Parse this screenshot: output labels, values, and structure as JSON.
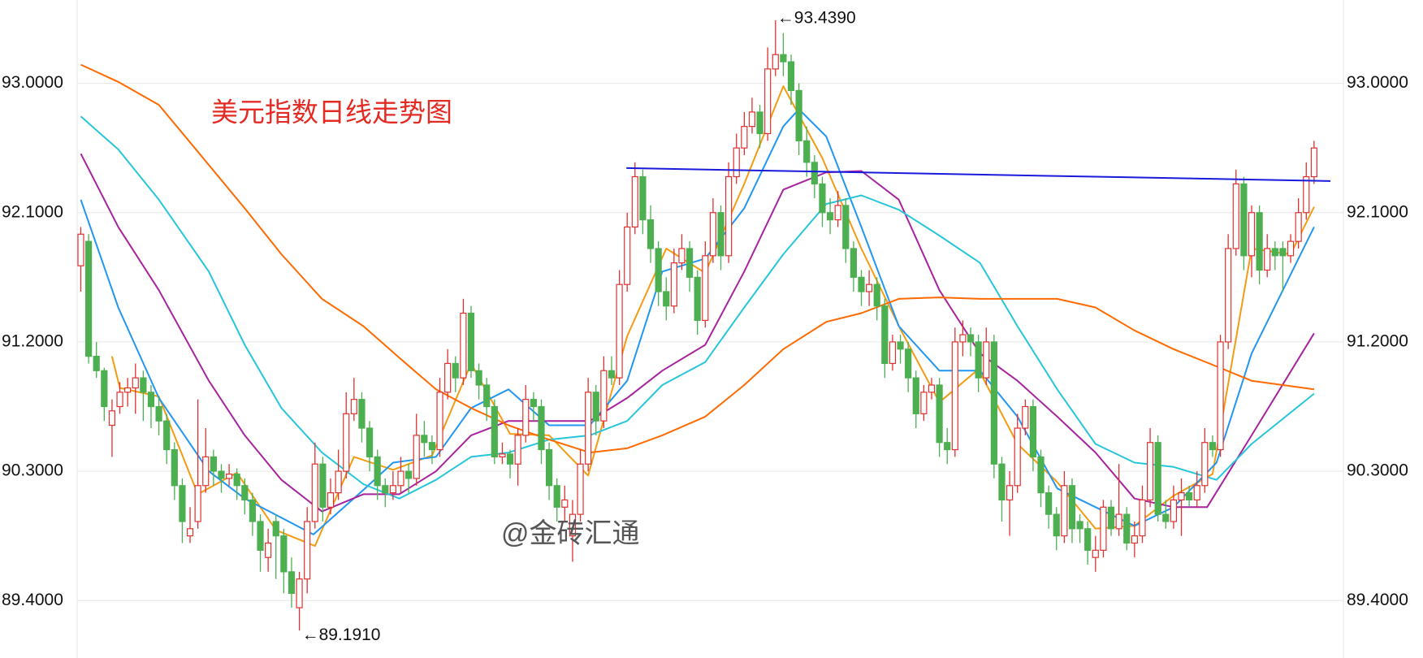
{
  "chart_data": {
    "type": "candlestick",
    "title": "美元指数日线走势图",
    "watermark": "@金砖汇通",
    "high_label": "←93.4390",
    "low_label": "←89.1910",
    "up_color": "#e0312f",
    "down_color": "#4caf50",
    "grid": true,
    "ylim": [
      89.0,
      93.58
    ],
    "yticks": [
      {
        "value": 89.4,
        "label": "89.4000"
      },
      {
        "value": 90.3,
        "label": "90.3000"
      },
      {
        "value": 91.2,
        "label": "91.2000"
      },
      {
        "value": 92.1,
        "label": "92.1000"
      },
      {
        "value": 93.0,
        "label": "93.0000"
      }
    ],
    "candles": [
      [
        91.73,
        92.0,
        91.55,
        91.95
      ],
      [
        91.9,
        91.95,
        91.05,
        91.1
      ],
      [
        91.1,
        91.2,
        90.95,
        91.0
      ],
      [
        91.0,
        91.02,
        90.65,
        90.75
      ],
      [
        90.62,
        90.8,
        90.4,
        90.72
      ],
      [
        90.75,
        90.92,
        90.7,
        90.85
      ],
      [
        90.85,
        90.95,
        90.75,
        90.88
      ],
      [
        90.88,
        91.05,
        90.7,
        90.95
      ],
      [
        90.95,
        91.0,
        90.65,
        90.85
      ],
      [
        90.85,
        90.9,
        90.6,
        90.75
      ],
      [
        90.75,
        90.82,
        90.55,
        90.65
      ],
      [
        90.65,
        90.7,
        90.35,
        90.45
      ],
      [
        90.45,
        90.5,
        90.1,
        90.2
      ],
      [
        90.2,
        90.25,
        89.8,
        89.95
      ],
      [
        89.85,
        90.05,
        89.8,
        89.9
      ],
      [
        89.95,
        90.8,
        89.9,
        90.2
      ],
      [
        90.2,
        90.6,
        90.15,
        90.4
      ],
      [
        90.4,
        90.45,
        90.2,
        90.3
      ],
      [
        90.3,
        90.35,
        90.15,
        90.25
      ],
      [
        90.25,
        90.35,
        90.2,
        90.28
      ],
      [
        90.28,
        90.32,
        90.1,
        90.2
      ],
      [
        90.2,
        90.25,
        90.0,
        90.1
      ],
      [
        90.1,
        90.15,
        89.85,
        89.95
      ],
      [
        89.95,
        90.0,
        89.6,
        89.75
      ],
      [
        89.7,
        89.9,
        89.6,
        89.8
      ],
      [
        89.95,
        90.0,
        89.55,
        89.85
      ],
      [
        89.85,
        89.9,
        89.45,
        89.6
      ],
      [
        89.6,
        89.7,
        89.35,
        89.45
      ],
      [
        89.35,
        89.6,
        89.191,
        89.55
      ],
      [
        89.55,
        90.05,
        89.45,
        89.95
      ],
      [
        89.95,
        90.5,
        89.9,
        90.35
      ],
      [
        90.35,
        90.4,
        89.95,
        90.05
      ],
      [
        90.05,
        90.25,
        90.0,
        90.15
      ],
      [
        90.15,
        90.45,
        90.1,
        90.3
      ],
      [
        90.3,
        90.85,
        90.25,
        90.7
      ],
      [
        90.7,
        90.95,
        90.65,
        90.8
      ],
      [
        90.8,
        90.85,
        90.5,
        90.6
      ],
      [
        90.6,
        90.65,
        90.3,
        90.4
      ],
      [
        90.4,
        90.45,
        90.1,
        90.2
      ],
      [
        90.2,
        90.25,
        90.05,
        90.15
      ],
      [
        90.15,
        90.3,
        90.1,
        90.2
      ],
      [
        90.2,
        90.4,
        90.15,
        90.3
      ],
      [
        90.3,
        90.35,
        90.15,
        90.25
      ],
      [
        90.25,
        90.7,
        90.2,
        90.55
      ],
      [
        90.55,
        90.65,
        90.4,
        90.5
      ],
      [
        90.5,
        90.55,
        90.35,
        90.45
      ],
      [
        90.45,
        90.95,
        90.4,
        90.85
      ],
      [
        90.85,
        91.15,
        90.8,
        91.05
      ],
      [
        91.05,
        91.1,
        90.85,
        90.95
      ],
      [
        90.95,
        91.5,
        90.9,
        91.4
      ],
      [
        91.4,
        91.45,
        90.95,
        91.0
      ],
      [
        91.0,
        91.05,
        90.8,
        90.9
      ],
      [
        90.9,
        90.95,
        90.65,
        90.75
      ],
      [
        90.75,
        90.8,
        90.35,
        90.4
      ],
      [
        90.4,
        90.5,
        90.35,
        90.42
      ],
      [
        90.42,
        90.45,
        90.25,
        90.35
      ],
      [
        90.35,
        90.6,
        90.2,
        90.55
      ],
      [
        90.55,
        90.9,
        90.5,
        90.8
      ],
      [
        90.8,
        90.85,
        90.65,
        90.75
      ],
      [
        90.75,
        90.8,
        90.35,
        90.45
      ],
      [
        90.45,
        90.5,
        90.1,
        90.2
      ],
      [
        90.2,
        90.25,
        89.95,
        90.05
      ],
      [
        90.05,
        90.2,
        89.95,
        90.1
      ],
      [
        89.85,
        90.1,
        89.67,
        90.0
      ],
      [
        90.0,
        90.45,
        89.95,
        90.35
      ],
      [
        90.35,
        90.95,
        90.3,
        90.85
      ],
      [
        90.85,
        90.9,
        90.55,
        90.65
      ],
      [
        90.65,
        91.1,
        90.6,
        91.0
      ],
      [
        91.0,
        91.1,
        90.9,
        90.95
      ],
      [
        90.95,
        91.7,
        90.9,
        91.6
      ],
      [
        91.6,
        92.1,
        91.55,
        92.0
      ],
      [
        92.0,
        92.45,
        91.95,
        92.35
      ],
      [
        92.35,
        92.4,
        91.95,
        92.05
      ],
      [
        92.05,
        92.15,
        91.75,
        91.85
      ],
      [
        91.85,
        91.9,
        91.45,
        91.55
      ],
      [
        91.55,
        91.65,
        91.35,
        91.45
      ],
      [
        91.45,
        91.85,
        91.4,
        91.75
      ],
      [
        91.75,
        91.95,
        91.7,
        91.85
      ],
      [
        91.85,
        91.9,
        91.55,
        91.65
      ],
      [
        91.65,
        91.7,
        91.25,
        91.35
      ],
      [
        91.35,
        91.9,
        91.3,
        91.8
      ],
      [
        91.8,
        92.2,
        91.75,
        92.1
      ],
      [
        92.1,
        92.15,
        91.7,
        91.8
      ],
      [
        91.8,
        92.45,
        91.75,
        92.35
      ],
      [
        92.35,
        92.65,
        92.3,
        92.55
      ],
      [
        92.55,
        92.8,
        92.5,
        92.7
      ],
      [
        92.7,
        92.9,
        92.65,
        92.8
      ],
      [
        92.8,
        92.85,
        92.55,
        92.65
      ],
      [
        92.65,
        93.25,
        92.6,
        93.1
      ],
      [
        93.1,
        93.439,
        93.05,
        93.2
      ],
      [
        93.2,
        93.35,
        93.05,
        93.15
      ],
      [
        93.15,
        93.2,
        92.85,
        92.95
      ],
      [
        92.95,
        93.0,
        92.5,
        92.6
      ],
      [
        92.6,
        92.7,
        92.35,
        92.45
      ],
      [
        92.45,
        92.5,
        92.2,
        92.3
      ],
      [
        92.3,
        92.35,
        92.0,
        92.1
      ],
      [
        92.1,
        92.2,
        91.95,
        92.05
      ],
      [
        92.05,
        92.25,
        92.0,
        92.15
      ],
      [
        92.15,
        92.2,
        91.75,
        91.85
      ],
      [
        91.85,
        91.9,
        91.55,
        91.65
      ],
      [
        91.65,
        91.7,
        91.45,
        91.55
      ],
      [
        91.55,
        91.7,
        91.45,
        91.6
      ],
      [
        91.6,
        91.65,
        91.35,
        91.45
      ],
      [
        91.45,
        91.5,
        90.95,
        91.05
      ],
      [
        91.05,
        91.25,
        91.0,
        91.2
      ],
      [
        91.2,
        91.25,
        91.05,
        91.15
      ],
      [
        91.15,
        91.2,
        90.85,
        90.95
      ],
      [
        90.95,
        91.0,
        90.6,
        90.7
      ],
      [
        90.7,
        90.9,
        90.65,
        90.85
      ],
      [
        90.85,
        90.95,
        90.8,
        90.9
      ],
      [
        90.9,
        90.95,
        90.4,
        90.5
      ],
      [
        90.5,
        90.6,
        90.35,
        90.45
      ],
      [
        90.45,
        91.3,
        90.4,
        91.2
      ],
      [
        91.2,
        91.35,
        91.1,
        91.25
      ],
      [
        91.25,
        91.3,
        91.1,
        91.2
      ],
      [
        91.2,
        91.25,
        90.85,
        90.95
      ],
      [
        90.95,
        91.3,
        90.9,
        91.2
      ],
      [
        91.2,
        91.25,
        90.25,
        90.35
      ],
      [
        90.35,
        90.4,
        89.95,
        90.1
      ],
      [
        90.1,
        90.3,
        89.85,
        90.2
      ],
      [
        90.2,
        90.7,
        90.15,
        90.6
      ],
      [
        90.6,
        90.8,
        90.55,
        90.75
      ],
      [
        90.75,
        90.8,
        90.3,
        90.4
      ],
      [
        90.4,
        90.45,
        90.05,
        90.15
      ],
      [
        90.15,
        90.2,
        89.9,
        90.0
      ],
      [
        90.0,
        90.05,
        89.75,
        89.85
      ],
      [
        89.85,
        90.3,
        89.8,
        90.2
      ],
      [
        90.2,
        90.25,
        89.8,
        89.9
      ],
      [
        89.95,
        90.0,
        89.8,
        89.9
      ],
      [
        89.9,
        89.95,
        89.65,
        89.75
      ],
      [
        89.7,
        89.85,
        89.6,
        89.75
      ],
      [
        89.75,
        90.1,
        89.7,
        90.05
      ],
      [
        90.05,
        90.1,
        89.85,
        89.9
      ],
      [
        89.9,
        90.35,
        89.85,
        90.0
      ],
      [
        90.0,
        90.05,
        89.75,
        89.8
      ],
      [
        89.8,
        89.95,
        89.7,
        89.85
      ],
      [
        89.85,
        90.2,
        89.8,
        90.1
      ],
      [
        90.1,
        90.6,
        90.05,
        90.5
      ],
      [
        90.5,
        90.55,
        89.95,
        90.0
      ],
      [
        90.0,
        90.1,
        89.9,
        89.95
      ],
      [
        89.95,
        90.2,
        89.9,
        90.1
      ],
      [
        90.1,
        90.25,
        89.85,
        90.15
      ],
      [
        90.15,
        90.2,
        90.05,
        90.1
      ],
      [
        90.1,
        90.3,
        90.05,
        90.2
      ],
      [
        90.2,
        90.6,
        90.15,
        90.5
      ],
      [
        90.5,
        90.55,
        90.4,
        90.45
      ],
      [
        90.45,
        91.25,
        90.4,
        91.2
      ],
      [
        91.2,
        91.95,
        91.15,
        91.85
      ],
      [
        91.85,
        92.4,
        91.8,
        92.3
      ],
      [
        92.3,
        92.35,
        91.7,
        91.8
      ],
      [
        91.8,
        92.15,
        91.65,
        92.1
      ],
      [
        92.1,
        92.15,
        91.6,
        91.7
      ],
      [
        91.7,
        91.95,
        91.65,
        91.85
      ],
      [
        91.85,
        91.9,
        91.7,
        91.8
      ],
      [
        91.85,
        91.9,
        91.55,
        91.8
      ],
      [
        91.8,
        91.95,
        91.75,
        91.9
      ],
      [
        91.9,
        92.2,
        91.85,
        92.1
      ],
      [
        92.1,
        92.45,
        92.05,
        92.35
      ],
      [
        92.35,
        92.6,
        92.3,
        92.55
      ]
    ],
    "ma_lines": [
      {
        "color": "#f39c12",
        "x": [
          4,
          5,
          10,
          15,
          20,
          25,
          30,
          35,
          40,
          45,
          50,
          55,
          60,
          65,
          70,
          75,
          80,
          85,
          90,
          95,
          100,
          105,
          110,
          115,
          120,
          125,
          130,
          135,
          140,
          145,
          150,
          155,
          158
        ],
        "values": [
          91.1,
          90.88,
          90.82,
          90.14,
          90.29,
          89.89,
          89.78,
          90.4,
          90.31,
          90.41,
          91.05,
          90.56,
          90.55,
          90.27,
          91.24,
          91.85,
          91.68,
          92.3,
          92.98,
          92.48,
          91.85,
          91.29,
          90.78,
          91.01,
          90.49,
          90.23,
          89.9,
          89.92,
          90.13,
          90.28,
          91.85,
          91.81,
          92.14
        ]
      },
      {
        "color": "#2196f3",
        "x": [
          0,
          4.8,
          10,
          16.4,
          21,
          29.8,
          36.2,
          40,
          45.5,
          50,
          54.8,
          60,
          65.2,
          70,
          74.5,
          80,
          85,
          90,
          92,
          95.5,
          100,
          104.8,
          110,
          115.2,
          120,
          125.1,
          130,
          135,
          140,
          145.5,
          150,
          158
        ],
        "values": [
          92.19,
          91.44,
          90.81,
          90.3,
          90.11,
          89.86,
          90.17,
          90.36,
          90.4,
          90.74,
          90.87,
          90.62,
          90.62,
          90.93,
          91.69,
          91.78,
          92.13,
          92.7,
          92.82,
          92.63,
          92.0,
          91.31,
          91.0,
          91.0,
          90.68,
          90.18,
          90.05,
          89.92,
          90.05,
          90.36,
          91.12,
          92.0
        ]
      },
      {
        "color": "#a8239e",
        "x": [
          0,
          4.8,
          10,
          16.4,
          21,
          25.7,
          30.9,
          36.2,
          40.8,
          45.5,
          50,
          54.8,
          60,
          65.2,
          70,
          74.5,
          80,
          85,
          90,
          95.5,
          100,
          104.8,
          110,
          115.2,
          120,
          125.1,
          130,
          135,
          140,
          144.3,
          150,
          158
        ],
        "values": [
          92.51,
          92.0,
          91.56,
          90.93,
          90.55,
          90.24,
          90.02,
          90.14,
          90.14,
          90.3,
          90.55,
          90.65,
          90.65,
          90.65,
          90.81,
          91.0,
          91.18,
          91.69,
          92.26,
          92.38,
          92.39,
          92.19,
          91.56,
          91.12,
          90.93,
          90.68,
          90.43,
          90.11,
          90.05,
          90.05,
          90.55,
          91.26
        ]
      },
      {
        "color": "#26c6da",
        "x": [
          0,
          4.8,
          10,
          16.4,
          21,
          25.7,
          30.9,
          36.2,
          40.8,
          45.5,
          50,
          54.8,
          60,
          65.2,
          70,
          74.5,
          80,
          85,
          90,
          95.5,
          100,
          104.8,
          110,
          115.2,
          120,
          125.1,
          130,
          135,
          140,
          145.5,
          150,
          158
        ],
        "values": [
          92.77,
          92.54,
          92.19,
          91.69,
          91.18,
          90.74,
          90.43,
          90.21,
          90.11,
          90.24,
          90.4,
          90.43,
          90.52,
          90.55,
          90.65,
          90.9,
          91.06,
          91.44,
          91.81,
          92.16,
          92.22,
          92.12,
          91.94,
          91.75,
          91.31,
          90.87,
          90.49,
          90.36,
          90.33,
          90.24,
          90.49,
          90.84
        ]
      },
      {
        "color": "#ff6a00",
        "x": [
          0,
          4.8,
          10,
          15.2,
          21,
          25.7,
          30.9,
          36.2,
          40.8,
          45.5,
          50,
          54.8,
          60,
          65.2,
          70,
          74.5,
          80,
          85,
          90,
          95.5,
          100,
          104.8,
          110,
          115.2,
          120,
          125.1,
          130,
          135,
          140,
          145.5,
          150,
          158
        ],
        "values": [
          93.13,
          93.01,
          92.85,
          92.51,
          92.13,
          91.81,
          91.5,
          91.31,
          91.09,
          90.87,
          90.74,
          90.62,
          90.52,
          90.43,
          90.46,
          90.55,
          90.68,
          90.9,
          91.15,
          91.34,
          91.4,
          91.5,
          91.51,
          91.5,
          91.5,
          91.5,
          91.44,
          91.28,
          91.15,
          91.03,
          90.93,
          90.87
        ]
      }
    ],
    "trendline": {
      "color": "#1a1adc",
      "x": [
        69.9,
        160.1
      ],
      "values": [
        92.41,
        92.32
      ]
    }
  }
}
